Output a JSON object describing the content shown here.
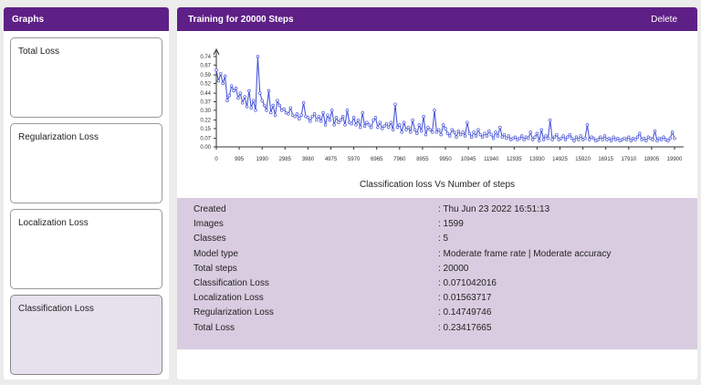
{
  "sidebar": {
    "title": "Graphs",
    "cards": [
      {
        "label": "Total Loss"
      },
      {
        "label": "Regularization Loss"
      },
      {
        "label": "Localization Loss"
      },
      {
        "label": "Classification Loss"
      }
    ]
  },
  "main": {
    "title": "Training for 20000 Steps",
    "delete_label": "Delete"
  },
  "chart_data": {
    "type": "line",
    "xlabel": "Classification loss Vs Number of steps",
    "ylabel": "",
    "xlim": [
      0,
      19900
    ],
    "ylim": [
      0,
      0.74
    ],
    "xticks": [
      "0",
      "995",
      "1990",
      "2985",
      "3980",
      "4975",
      "5970",
      "6965",
      "7960",
      "8955",
      "9950",
      "10945",
      "11940",
      "12935",
      "13930",
      "14925",
      "15920",
      "16915",
      "17910",
      "18905",
      "19900"
    ],
    "yticks": [
      "0.00",
      "0.07",
      "0.15",
      "0.22",
      "0.30",
      "0.37",
      "0.44",
      "0.52",
      "0.59",
      "0.67",
      "0.74"
    ],
    "series": [
      {
        "values": [
          0.63,
          0.54,
          0.6,
          0.52,
          0.58,
          0.38,
          0.42,
          0.5,
          0.46,
          0.48,
          0.4,
          0.44,
          0.36,
          0.41,
          0.33,
          0.46,
          0.32,
          0.38,
          0.3,
          0.74,
          0.44,
          0.38,
          0.34,
          0.3,
          0.46,
          0.28,
          0.34,
          0.26,
          0.38,
          0.34,
          0.3,
          0.31,
          0.28,
          0.27,
          0.32,
          0.26,
          0.25,
          0.27,
          0.23,
          0.26,
          0.36,
          0.25,
          0.24,
          0.21,
          0.25,
          0.27,
          0.22,
          0.25,
          0.21,
          0.28,
          0.18,
          0.26,
          0.22,
          0.3,
          0.18,
          0.24,
          0.2,
          0.22,
          0.25,
          0.18,
          0.3,
          0.2,
          0.19,
          0.24,
          0.18,
          0.22,
          0.16,
          0.28,
          0.17,
          0.2,
          0.18,
          0.16,
          0.22,
          0.24,
          0.16,
          0.2,
          0.15,
          0.17,
          0.19,
          0.16,
          0.2,
          0.14,
          0.35,
          0.16,
          0.18,
          0.12,
          0.2,
          0.14,
          0.16,
          0.12,
          0.22,
          0.14,
          0.11,
          0.18,
          0.13,
          0.25,
          0.1,
          0.16,
          0.14,
          0.12,
          0.3,
          0.12,
          0.14,
          0.1,
          0.18,
          0.15,
          0.11,
          0.09,
          0.14,
          0.12,
          0.08,
          0.13,
          0.1,
          0.12,
          0.09,
          0.2,
          0.11,
          0.08,
          0.12,
          0.09,
          0.14,
          0.1,
          0.08,
          0.11,
          0.09,
          0.13,
          0.1,
          0.07,
          0.12,
          0.09,
          0.16,
          0.08,
          0.1,
          0.07,
          0.09,
          0.06,
          0.07,
          0.08,
          0.06,
          0.07,
          0.09,
          0.06,
          0.08,
          0.07,
          0.12,
          0.06,
          0.08,
          0.11,
          0.05,
          0.14,
          0.06,
          0.09,
          0.07,
          0.22,
          0.06,
          0.08,
          0.1,
          0.06,
          0.07,
          0.09,
          0.06,
          0.08,
          0.1,
          0.07,
          0.05,
          0.08,
          0.06,
          0.09,
          0.06,
          0.07,
          0.18,
          0.06,
          0.08,
          0.07,
          0.05,
          0.06,
          0.08,
          0.06,
          0.09,
          0.06,
          0.07,
          0.05,
          0.08,
          0.06,
          0.07,
          0.05,
          0.06,
          0.07,
          0.06,
          0.08,
          0.05,
          0.07,
          0.06,
          0.08,
          0.11,
          0.06,
          0.07,
          0.05,
          0.08,
          0.07,
          0.06,
          0.13,
          0.05,
          0.07,
          0.06,
          0.08,
          0.06,
          0.05,
          0.07,
          0.12,
          0.07
        ]
      }
    ]
  },
  "info": [
    {
      "label": "Created",
      "value": ": Thu Jun 23 2022 16:51:13"
    },
    {
      "label": "Images",
      "value": ": 1599"
    },
    {
      "label": "Classes",
      "value": ": 5"
    },
    {
      "label": "Model type",
      "value": ": Moderate frame rate | Moderate accuracy"
    },
    {
      "label": "Total steps",
      "value": ": 20000"
    },
    {
      "label": "Classification Loss",
      "value": ": 0.071042016"
    },
    {
      "label": "Localization Loss",
      "value": ": 0.01563717"
    },
    {
      "label": "Regularization Loss",
      "value": ": 0.14749746"
    },
    {
      "label": "Total Loss",
      "value": ": 0.23417665"
    }
  ],
  "colors": {
    "accent": "#5e1f86",
    "info_bg": "#d9cce0",
    "line": "#4a57d8"
  }
}
